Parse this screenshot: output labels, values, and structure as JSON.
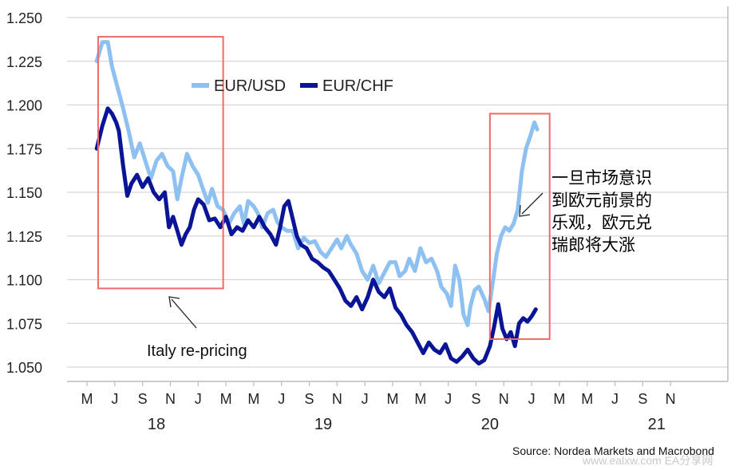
{
  "chart_data": {
    "type": "line",
    "ylim": [
      1.05,
      1.25
    ],
    "y_ticks": [
      "1.250",
      "1.225",
      "1.200",
      "1.175",
      "1.150",
      "1.125",
      "1.100",
      "1.075",
      "1.050"
    ],
    "x_month_labels": [
      "M",
      "J",
      "S",
      "N",
      "J",
      "M",
      "M",
      "J",
      "S",
      "N",
      "J",
      "M",
      "M",
      "J",
      "S",
      "N",
      "J",
      "M",
      "M",
      "J",
      "S",
      "N"
    ],
    "x_year_labels": [
      {
        "label": "18",
        "month": 6
      },
      {
        "label": "19",
        "month": 18
      },
      {
        "label": "20",
        "month": 30
      },
      {
        "label": "21",
        "month": 42
      }
    ],
    "x_range_months": [
      0.8,
      47
    ],
    "grid": true,
    "legend_position": "top-left",
    "series": [
      {
        "name": "EUR/USD",
        "color": "#8ec1f2",
        "points": [
          [
            1.7,
            1.225
          ],
          [
            2.1,
            1.236
          ],
          [
            2.5,
            1.236
          ],
          [
            2.8,
            1.222
          ],
          [
            3.2,
            1.21
          ],
          [
            3.6,
            1.198
          ],
          [
            4.0,
            1.185
          ],
          [
            4.4,
            1.17
          ],
          [
            4.8,
            1.178
          ],
          [
            5.2,
            1.168
          ],
          [
            5.6,
            1.158
          ],
          [
            6.0,
            1.168
          ],
          [
            6.4,
            1.172
          ],
          [
            6.8,
            1.165
          ],
          [
            7.2,
            1.162
          ],
          [
            7.5,
            1.146
          ],
          [
            7.8,
            1.158
          ],
          [
            8.2,
            1.172
          ],
          [
            8.6,
            1.165
          ],
          [
            9.0,
            1.16
          ],
          [
            9.3,
            1.153
          ],
          [
            9.7,
            1.144
          ],
          [
            10.0,
            1.152
          ],
          [
            10.4,
            1.142
          ],
          [
            10.8,
            1.14
          ],
          [
            11.2,
            1.132
          ],
          [
            11.6,
            1.138
          ],
          [
            12.0,
            1.142
          ],
          [
            12.3,
            1.132
          ],
          [
            12.6,
            1.145
          ],
          [
            13.0,
            1.142
          ],
          [
            13.3,
            1.138
          ],
          [
            13.6,
            1.13
          ],
          [
            14.0,
            1.138
          ],
          [
            14.4,
            1.14
          ],
          [
            14.7,
            1.133
          ],
          [
            15.0,
            1.13
          ],
          [
            15.4,
            1.128
          ],
          [
            15.8,
            1.128
          ],
          [
            16.2,
            1.118
          ],
          [
            16.6,
            1.124
          ],
          [
            17.0,
            1.121
          ],
          [
            17.4,
            1.122
          ],
          [
            17.8,
            1.116
          ],
          [
            18.2,
            1.113
          ],
          [
            18.6,
            1.118
          ],
          [
            19.0,
            1.123
          ],
          [
            19.3,
            1.118
          ],
          [
            19.7,
            1.125
          ],
          [
            20.0,
            1.12
          ],
          [
            20.4,
            1.115
          ],
          [
            20.8,
            1.105
          ],
          [
            21.2,
            1.1
          ],
          [
            21.6,
            1.108
          ],
          [
            22.0,
            1.098
          ],
          [
            22.4,
            1.104
          ],
          [
            22.8,
            1.11
          ],
          [
            23.2,
            1.11
          ],
          [
            23.5,
            1.102
          ],
          [
            23.9,
            1.105
          ],
          [
            24.2,
            1.112
          ],
          [
            24.6,
            1.105
          ],
          [
            25.0,
            1.118
          ],
          [
            25.4,
            1.11
          ],
          [
            25.8,
            1.112
          ],
          [
            26.2,
            1.105
          ],
          [
            26.5,
            1.096
          ],
          [
            26.9,
            1.092
          ],
          [
            27.2,
            1.085
          ],
          [
            27.5,
            1.108
          ],
          [
            27.8,
            1.1
          ],
          [
            28.1,
            1.08
          ],
          [
            28.4,
            1.074
          ],
          [
            28.6,
            1.085
          ],
          [
            28.9,
            1.094
          ],
          [
            29.2,
            1.096
          ],
          [
            29.6,
            1.089
          ],
          [
            29.9,
            1.082
          ],
          [
            30.2,
            1.098
          ],
          [
            30.5,
            1.115
          ],
          [
            30.8,
            1.125
          ],
          [
            31.1,
            1.13
          ],
          [
            31.4,
            1.128
          ],
          [
            31.7,
            1.132
          ],
          [
            32.0,
            1.14
          ],
          [
            32.3,
            1.162
          ],
          [
            32.6,
            1.175
          ],
          [
            32.9,
            1.182
          ],
          [
            33.2,
            1.19
          ],
          [
            33.4,
            1.186
          ]
        ]
      },
      {
        "name": "EUR/CHF",
        "color": "#0a1496",
        "points": [
          [
            1.7,
            1.175
          ],
          [
            2.1,
            1.188
          ],
          [
            2.5,
            1.198
          ],
          [
            2.8,
            1.195
          ],
          [
            3.1,
            1.19
          ],
          [
            3.3,
            1.185
          ],
          [
            3.6,
            1.165
          ],
          [
            3.9,
            1.148
          ],
          [
            4.2,
            1.155
          ],
          [
            4.6,
            1.16
          ],
          [
            5.0,
            1.153
          ],
          [
            5.4,
            1.158
          ],
          [
            5.8,
            1.15
          ],
          [
            6.2,
            1.146
          ],
          [
            6.6,
            1.15
          ],
          [
            6.9,
            1.13
          ],
          [
            7.2,
            1.136
          ],
          [
            7.5,
            1.128
          ],
          [
            7.8,
            1.12
          ],
          [
            8.1,
            1.126
          ],
          [
            8.4,
            1.13
          ],
          [
            8.7,
            1.14
          ],
          [
            9.0,
            1.146
          ],
          [
            9.4,
            1.143
          ],
          [
            9.8,
            1.134
          ],
          [
            10.2,
            1.135
          ],
          [
            10.6,
            1.13
          ],
          [
            11.0,
            1.136
          ],
          [
            11.4,
            1.126
          ],
          [
            11.8,
            1.13
          ],
          [
            12.2,
            1.128
          ],
          [
            12.6,
            1.134
          ],
          [
            13.0,
            1.13
          ],
          [
            13.4,
            1.136
          ],
          [
            13.8,
            1.13
          ],
          [
            14.2,
            1.126
          ],
          [
            14.6,
            1.12
          ],
          [
            14.9,
            1.13
          ],
          [
            15.2,
            1.142
          ],
          [
            15.5,
            1.145
          ],
          [
            15.8,
            1.135
          ],
          [
            16.1,
            1.125
          ],
          [
            16.4,
            1.12
          ],
          [
            16.8,
            1.118
          ],
          [
            17.2,
            1.112
          ],
          [
            17.6,
            1.11
          ],
          [
            18.0,
            1.107
          ],
          [
            18.4,
            1.105
          ],
          [
            18.8,
            1.1
          ],
          [
            19.2,
            1.095
          ],
          [
            19.6,
            1.088
          ],
          [
            20.0,
            1.085
          ],
          [
            20.4,
            1.09
          ],
          [
            20.8,
            1.083
          ],
          [
            21.2,
            1.09
          ],
          [
            21.6,
            1.1
          ],
          [
            22.0,
            1.093
          ],
          [
            22.4,
            1.09
          ],
          [
            22.8,
            1.095
          ],
          [
            23.2,
            1.084
          ],
          [
            23.6,
            1.08
          ],
          [
            24.0,
            1.074
          ],
          [
            24.4,
            1.07
          ],
          [
            24.8,
            1.064
          ],
          [
            25.2,
            1.058
          ],
          [
            25.6,
            1.064
          ],
          [
            26.0,
            1.06
          ],
          [
            26.4,
            1.058
          ],
          [
            26.8,
            1.063
          ],
          [
            27.2,
            1.055
          ],
          [
            27.6,
            1.053
          ],
          [
            28.0,
            1.056
          ],
          [
            28.4,
            1.06
          ],
          [
            28.8,
            1.055
          ],
          [
            29.2,
            1.052
          ],
          [
            29.6,
            1.054
          ],
          [
            30.0,
            1.062
          ],
          [
            30.3,
            1.073
          ],
          [
            30.6,
            1.086
          ],
          [
            30.9,
            1.072
          ],
          [
            31.2,
            1.066
          ],
          [
            31.5,
            1.07
          ],
          [
            31.8,
            1.062
          ],
          [
            32.1,
            1.075
          ],
          [
            32.4,
            1.078
          ],
          [
            32.7,
            1.076
          ],
          [
            33.0,
            1.079
          ],
          [
            33.3,
            1.083
          ]
        ]
      }
    ]
  },
  "legend": {
    "usd_label": "EUR/USD",
    "chf_label": "EUR/CHF"
  },
  "annotations": {
    "italy_label": "Italy re-pricing",
    "chinese_lines": [
      "一旦市场意识",
      "到欧元前景的",
      "乐观，欧元兑",
      "瑞郎将大涨"
    ]
  },
  "highlight_boxes": {
    "color": "#f06a6a",
    "box1_months": [
      1.8,
      10.8
    ],
    "box1_values": [
      1.095,
      1.239
    ],
    "box2_months": [
      30.0,
      34.3
    ],
    "box2_values": [
      1.066,
      1.195
    ]
  },
  "footer": {
    "source": "Source: Nordea Markets and Macrobond",
    "watermark": "www.ealxw.com    EA分享网"
  }
}
